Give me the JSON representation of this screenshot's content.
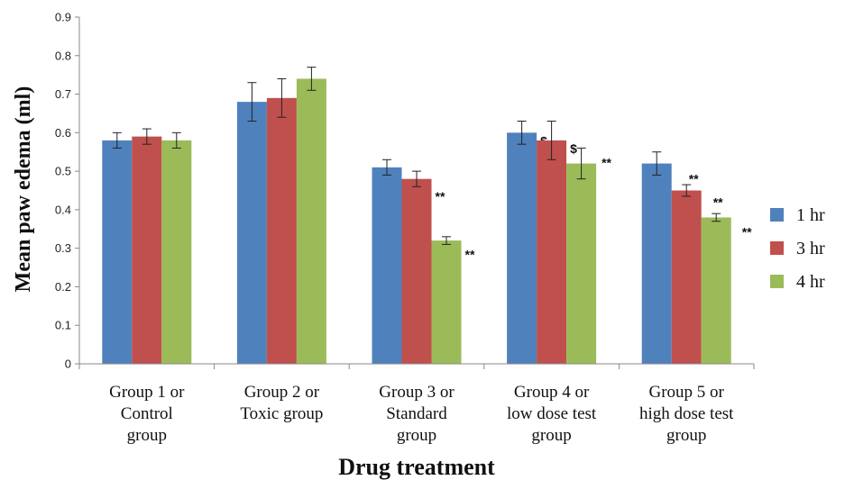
{
  "chart_data": {
    "type": "bar",
    "xlabel": "Drug treatment",
    "ylabel": "Mean paw edema  (ml)",
    "ylim": [
      0,
      0.9
    ],
    "yticks": [
      "0",
      "0.1",
      "0.2",
      "0.3",
      "0.4",
      "0.5",
      "0.6",
      "0.7",
      "0.8",
      "0.9"
    ],
    "categories": [
      [
        "Group 1 or",
        "Control",
        "group"
      ],
      [
        "Group 2 or",
        "Toxic group"
      ],
      [
        "Group 3 or",
        "Standard",
        "group"
      ],
      [
        "Group 4 or",
        "low dose test",
        "group"
      ],
      [
        "Group 5 or",
        "high dose test",
        "group"
      ]
    ],
    "series": [
      {
        "name": "1 hr",
        "color": "#4F81BD",
        "values": [
          0.58,
          0.68,
          0.51,
          0.6,
          0.52
        ],
        "errors": [
          0.02,
          0.05,
          0.02,
          0.03,
          0.03
        ],
        "annotations": [
          "",
          "",
          "**",
          "$",
          ""
        ]
      },
      {
        "name": "3 hr",
        "color": "#C0504D",
        "values": [
          0.59,
          0.69,
          0.48,
          0.58,
          0.45
        ],
        "errors": [
          0.02,
          0.05,
          0.02,
          0.05,
          0.015
        ],
        "annotations": [
          "",
          "",
          "**",
          "$",
          "**"
        ]
      },
      {
        "name": "4 hr",
        "color": "#9BBB59",
        "values": [
          0.58,
          0.74,
          0.32,
          0.52,
          0.38
        ],
        "errors": [
          0.02,
          0.03,
          0.01,
          0.04,
          0.01
        ],
        "annotations": [
          "",
          "",
          "**",
          "**",
          "**"
        ]
      }
    ],
    "extra_annotations": [
      {
        "group": 4,
        "text": "**"
      }
    ],
    "grid": false,
    "legend_position": "right"
  }
}
